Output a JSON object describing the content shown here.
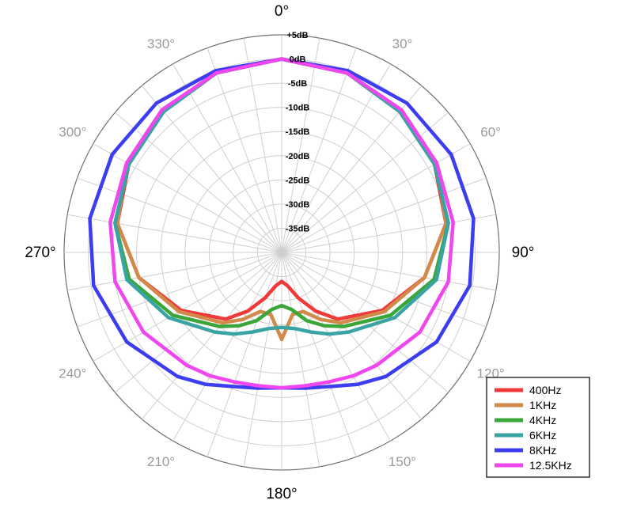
{
  "chart_data": {
    "type": "polar-line",
    "title": "",
    "angle_unit": "degrees",
    "angle_direction": "clockwise",
    "angle_zero": "top",
    "angle_ticks": [
      0,
      30,
      60,
      90,
      120,
      150,
      180,
      210,
      240,
      270,
      300,
      330
    ],
    "angle_tick_labels": [
      "0°",
      "30°",
      "60°",
      "90°",
      "120°",
      "150°",
      "180°",
      "210°",
      "240°",
      "270°",
      "300°",
      "330°"
    ],
    "radial_unit": "dB",
    "rlim": [
      -40,
      5
    ],
    "radial_ticks": [
      5,
      0,
      -5,
      -10,
      -15,
      -20,
      -25,
      -30,
      -35
    ],
    "radial_tick_labels": [
      "+5dB",
      "0dB",
      "-5dB",
      "-10dB",
      "-15dB",
      "-20dB",
      "-25dB",
      "-30dB",
      "-35dB"
    ],
    "grid": true,
    "legend_position": "bottom-right",
    "angles": [
      0,
      20,
      40,
      60,
      80,
      100,
      120,
      140,
      150,
      160,
      170,
      180
    ],
    "series": [
      {
        "name": "400Hz",
        "color": "#f03a3a",
        "values": [
          0,
          -0.5,
          -2,
          -3.5,
          -5.5,
          -10,
          -16,
          -22,
          -26,
          -30,
          -33,
          -34
        ]
      },
      {
        "name": "1KHz",
        "color": "#d18a4a",
        "values": [
          0,
          -0.5,
          -1.5,
          -3,
          -5.5,
          -10,
          -15.5,
          -21,
          -24,
          -27,
          -27,
          -22
        ]
      },
      {
        "name": "4KHz",
        "color": "#3aa63a",
        "values": [
          0,
          -0.5,
          -2,
          -3.5,
          -5,
          -8,
          -14,
          -20,
          -22.5,
          -25,
          -28,
          -29
        ]
      },
      {
        "name": "6KHz",
        "color": "#3aa3a3",
        "values": [
          0,
          -0.5,
          -2,
          -3.5,
          -5,
          -7.5,
          -13,
          -18.5,
          -20.5,
          -22.5,
          -24,
          -24.5
        ]
      },
      {
        "name": "8KHz",
        "color": "#3c3cf0",
        "values": [
          0,
          0,
          0.3,
          0.5,
          0.3,
          -0.5,
          -3,
          -6.5,
          -8.5,
          -10.5,
          -11.5,
          -12
        ]
      },
      {
        "name": "12.5KHz",
        "color": "#f046f0",
        "values": [
          0,
          -0.5,
          -1.5,
          -3,
          -4,
          -5,
          -7,
          -9.5,
          -10.5,
          -11.5,
          -12,
          -12
        ]
      }
    ]
  }
}
